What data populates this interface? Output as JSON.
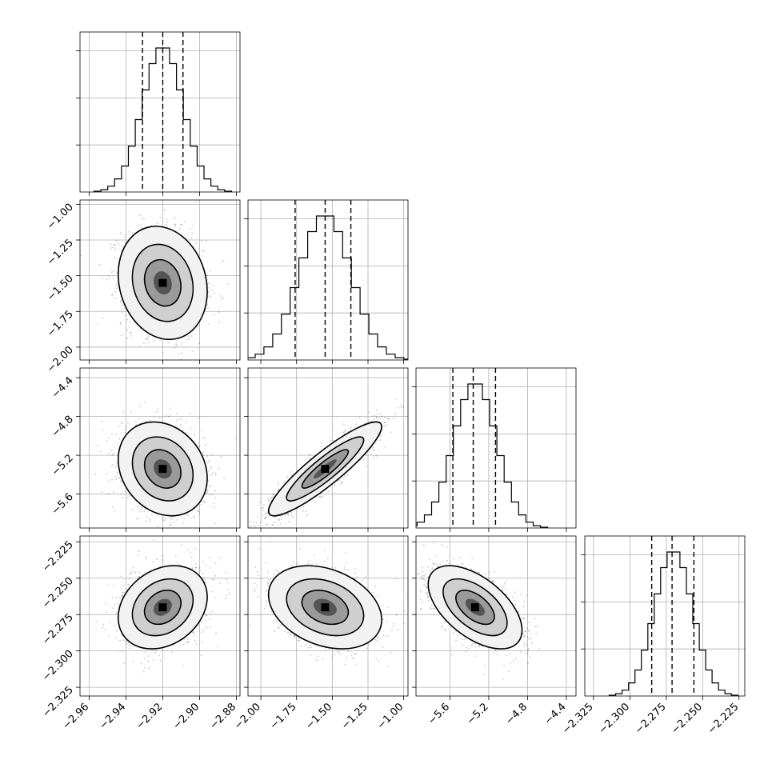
{
  "chart_data": {
    "type": "corner",
    "parameters": [
      {
        "range": [
          -2.965,
          -2.878
        ],
        "ticks": [
          "−2.96",
          "−2.94",
          "−2.92",
          "−2.90",
          "−2.88"
        ],
        "tick_values": [
          -2.96,
          -2.94,
          -2.92,
          -2.9,
          -2.88
        ],
        "mean": -2.92,
        "sd": 0.011,
        "quantiles": [
          -2.931,
          -2.92,
          -2.909
        ]
      },
      {
        "range": [
          -2.09,
          -0.97
        ],
        "ticks": [
          "−2.00",
          "−1.75",
          "−1.50",
          "−1.25",
          "−1.00"
        ],
        "tick_values": [
          -2.0,
          -1.75,
          -1.5,
          -1.25,
          -1.0
        ],
        "mean": -1.55,
        "sd": 0.18,
        "quantiles": [
          -1.76,
          -1.55,
          -1.37
        ]
      },
      {
        "range": [
          -5.95,
          -4.3
        ],
        "ticks": [
          "−5.6",
          "−5.2",
          "−4.8",
          "−4.4"
        ],
        "tick_values": [
          -5.6,
          -5.2,
          -4.8,
          -4.4
        ],
        "mean": -5.34,
        "sd": 0.22,
        "quantiles": [
          -5.57,
          -5.36,
          -5.13
        ]
      },
      {
        "range": [
          -2.331,
          -2.221
        ],
        "ticks": [
          "−2.325",
          "−2.300",
          "−2.275",
          "−2.250",
          "−2.225"
        ],
        "tick_values": [
          -2.325,
          -2.3,
          -2.275,
          -2.25,
          -2.225
        ],
        "mean": -2.27,
        "sd": 0.013,
        "quantiles": [
          -2.285,
          -2.271,
          -2.256
        ]
      }
    ],
    "correlations": {
      "1-0": -0.15,
      "2-0": -0.2,
      "2-1": 0.9,
      "3-0": 0.25,
      "3-1": -0.3,
      "3-2": -0.55
    },
    "bins": 20,
    "grid": true,
    "quantile_line_style": "dashed",
    "contours": 3
  }
}
